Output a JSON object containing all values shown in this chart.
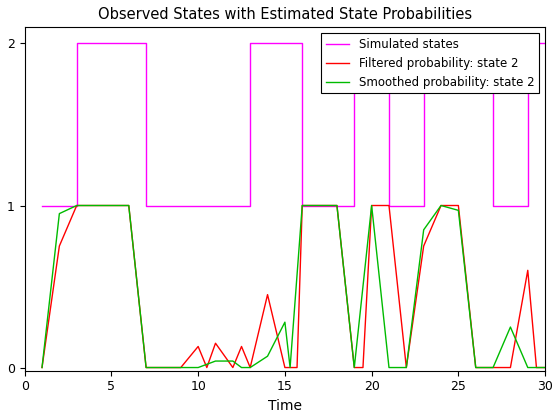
{
  "title": "Observed States with Estimated State Probabilities",
  "xlabel": "Time",
  "xlim": [
    0,
    30
  ],
  "ylim": [
    -0.02,
    2.1
  ],
  "yticks": [
    0,
    1,
    2
  ],
  "xticks": [
    0,
    5,
    10,
    15,
    20,
    25,
    30
  ],
  "simulated_color": "#ff00ff",
  "filtered_color": "#ff0000",
  "smoothed_color": "#00bb00",
  "legend_labels": [
    "Simulated states",
    "Filtered probability: state 2",
    "Smoothed probability: state 2"
  ],
  "sim_x": [
    1,
    1,
    3,
    3,
    7,
    7,
    13,
    13,
    16,
    16,
    19,
    19,
    21,
    21,
    23,
    23,
    27,
    27,
    29,
    29,
    30
  ],
  "sim_y": [
    1,
    1,
    1,
    2,
    2,
    1,
    1,
    2,
    2,
    1,
    1,
    2,
    2,
    1,
    1,
    2,
    2,
    1,
    1,
    2,
    2
  ],
  "filt_x": [
    1,
    2,
    3,
    4,
    5,
    6,
    7,
    8,
    9,
    10,
    10.5,
    11,
    12,
    12.5,
    13,
    14,
    15,
    15.3,
    15.7,
    16,
    17,
    18,
    19,
    19.5,
    20,
    21,
    22,
    23,
    24,
    25,
    26,
    27,
    28,
    29,
    29.5,
    30
  ],
  "filt_y": [
    0,
    0.75,
    1.0,
    1.0,
    1.0,
    1.0,
    0.0,
    0.0,
    0.0,
    0.13,
    0.0,
    0.15,
    0.0,
    0.13,
    0.0,
    0.45,
    0.0,
    0.0,
    0.0,
    1.0,
    1.0,
    1.0,
    0.0,
    0.0,
    1.0,
    1.0,
    0.0,
    0.75,
    1.0,
    1.0,
    0.0,
    0.0,
    0.0,
    0.6,
    0.0,
    0.0
  ],
  "smooth_x": [
    1,
    2,
    3,
    4,
    5,
    6,
    7,
    8,
    9,
    10,
    11,
    12,
    12.5,
    13,
    14,
    15,
    15.3,
    16,
    17,
    18,
    19,
    20,
    21,
    22,
    23,
    24,
    25,
    26,
    27,
    28,
    29,
    30
  ],
  "smooth_y": [
    0,
    0.95,
    1.0,
    1.0,
    1.0,
    1.0,
    0.0,
    0.0,
    0.0,
    0.0,
    0.04,
    0.04,
    0.0,
    0.0,
    0.07,
    0.28,
    0.0,
    1.0,
    1.0,
    1.0,
    0.0,
    1.0,
    0.0,
    0.0,
    0.85,
    1.0,
    0.97,
    0.0,
    0.0,
    0.25,
    0.0,
    0.0
  ]
}
